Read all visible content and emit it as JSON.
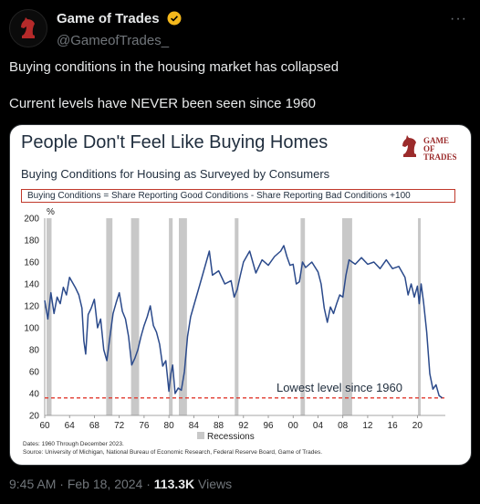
{
  "author": {
    "display_name": "Game of Trades",
    "handle": "@GameofTrades_",
    "more_label": "···"
  },
  "tweet": {
    "line1": "Buying conditions in the housing market has collapsed",
    "line2": "Current levels have NEVER been seen since 1960"
  },
  "footer": {
    "time": "9:45 AM",
    "sep1": " · ",
    "date": "Feb 18, 2024",
    "sep2": " · ",
    "views_count": "113.3K",
    "views_label": " Views"
  },
  "colors": {
    "background": "#000000",
    "line": "#2b4a8b",
    "recession": "#c8c8c8",
    "annotation": "#e03a2f",
    "verified": "#f4b81c"
  },
  "chart_data": {
    "type": "line",
    "title": "People Don't Feel Like Buying Homes",
    "subtitle": "Buying Conditions for Housing as Surveyed by Consumers",
    "formula": "Buying Conditions = Share Reporting Good Conditions - Share Reporting Bad Conditions +100",
    "ylabel": "%",
    "ylim": [
      20,
      200
    ],
    "yticks": [
      20,
      40,
      60,
      80,
      100,
      120,
      140,
      160,
      180,
      200
    ],
    "xlim": [
      1960,
      2024.5
    ],
    "xticks": [
      {
        "v": 1960,
        "label": "60"
      },
      {
        "v": 1964,
        "label": "64"
      },
      {
        "v": 1968,
        "label": "68"
      },
      {
        "v": 1972,
        "label": "72"
      },
      {
        "v": 1976,
        "label": "76"
      },
      {
        "v": 1980,
        "label": "80"
      },
      {
        "v": 1984,
        "label": "84"
      },
      {
        "v": 1988,
        "label": "88"
      },
      {
        "v": 1992,
        "label": "92"
      },
      {
        "v": 1996,
        "label": "96"
      },
      {
        "v": 2000,
        "label": "00"
      },
      {
        "v": 2004,
        "label": "04"
      },
      {
        "v": 2008,
        "label": "08"
      },
      {
        "v": 2012,
        "label": "12"
      },
      {
        "v": 2016,
        "label": "16"
      },
      {
        "v": 2020,
        "label": "20"
      }
    ],
    "recessions": [
      [
        1960.3,
        1961.1
      ],
      [
        1969.9,
        1970.9
      ],
      [
        1973.9,
        1975.2
      ],
      [
        1980.0,
        1980.6
      ],
      [
        1981.6,
        1982.9
      ],
      [
        1990.6,
        1991.2
      ],
      [
        2001.2,
        2001.9
      ],
      [
        2007.9,
        2009.5
      ],
      [
        2020.1,
        2020.4
      ]
    ],
    "legend": "Recessions",
    "reference_line": {
      "y": 36,
      "label": "Lowest level since 1960"
    },
    "series": [
      {
        "x": [
          1960,
          1960.5,
          1961,
          1961.5,
          1962,
          1962.5,
          1963,
          1963.5,
          1964,
          1964.5,
          1965,
          1965.5,
          1966,
          1966.3,
          1966.6,
          1967,
          1967.5,
          1968,
          1968.5,
          1969,
          1969.5,
          1970,
          1970.5,
          1971,
          1971.5,
          1972,
          1972.5,
          1973,
          1973.5,
          1974,
          1974.5,
          1975,
          1975.5,
          1976,
          1976.5,
          1977,
          1977.5,
          1978,
          1978.5,
          1979,
          1979.5,
          1980,
          1980.3,
          1980.6,
          1981,
          1981.5,
          1982,
          1982.5,
          1983,
          1983.5,
          1984,
          1985,
          1986,
          1986.5,
          1987,
          1988,
          1989,
          1990,
          1990.5,
          1991,
          1991.5,
          1992,
          1993,
          1994,
          1995,
          1996,
          1997,
          1998,
          1998.5,
          1999,
          1999.5,
          2000,
          2000.5,
          2001,
          2001.5,
          2002,
          2003,
          2004,
          2004.5,
          2005,
          2005.5,
          2006,
          2006.5,
          2007,
          2007.5,
          2008,
          2008.5,
          2009,
          2010,
          2011,
          2012,
          2013,
          2014,
          2015,
          2016,
          2017,
          2018,
          2018.5,
          2019,
          2019.5,
          2020,
          2020.3,
          2020.6,
          2021,
          2021.5,
          2022,
          2022.5,
          2023,
          2023.5,
          2024
        ],
        "y": [
          125,
          108,
          132,
          113,
          128,
          122,
          137,
          130,
          146,
          141,
          136,
          130,
          118,
          88,
          76,
          112,
          118,
          126,
          100,
          108,
          80,
          70,
          92,
          113,
          123,
          132,
          115,
          108,
          92,
          66,
          72,
          80,
          92,
          102,
          110,
          120,
          102,
          96,
          85,
          65,
          70,
          42,
          58,
          66,
          40,
          45,
          43,
          60,
          92,
          110,
          120,
          140,
          160,
          170,
          148,
          152,
          140,
          143,
          128,
          135,
          148,
          160,
          170,
          150,
          162,
          157,
          165,
          170,
          175,
          165,
          157,
          158,
          140,
          142,
          160,
          155,
          160,
          151,
          140,
          118,
          105,
          119,
          113,
          122,
          130,
          128,
          148,
          162,
          158,
          164,
          158,
          160,
          154,
          162,
          154,
          156,
          146,
          130,
          140,
          128,
          138,
          122,
          140,
          123,
          96,
          58,
          44,
          48,
          38,
          36
        ]
      }
    ],
    "notes": {
      "dates": "Dates: 1960 Through December 2023.",
      "source": "Source: University of Michigan, National Bureau of Economic Research, Federal Reserve Board, Game of Trades."
    },
    "logo": {
      "line1": "GAME OF",
      "line2": "TRADES"
    }
  }
}
